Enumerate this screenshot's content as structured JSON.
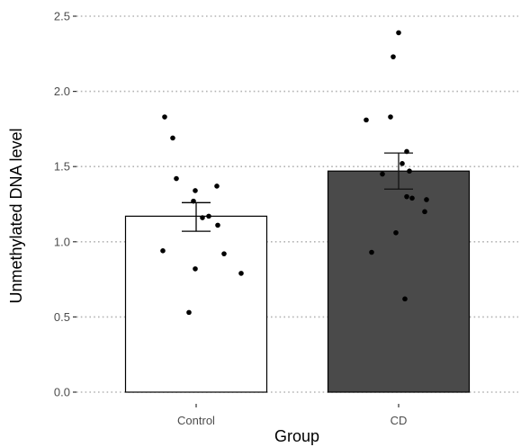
{
  "chart_data": {
    "type": "bar",
    "title": "",
    "xlabel": "Group",
    "ylabel": "Unmethylated DNA level",
    "ylim": [
      0,
      2.55
    ],
    "y_ticks": [
      0.0,
      0.5,
      1.0,
      1.5,
      2.0,
      2.5
    ],
    "y_tick_labels": [
      "0.0",
      "0.5",
      "1.0",
      "1.5",
      "2.0",
      "2.5"
    ],
    "grid": "horizontal dotted",
    "categories": [
      "Control",
      "CD"
    ],
    "values": [
      1.17,
      1.47
    ],
    "error": [
      {
        "low": 1.07,
        "high": 1.26
      },
      {
        "low": 1.35,
        "high": 1.59
      }
    ],
    "bar_colors": [
      "#ffffff",
      "#4a4a4a"
    ],
    "points": [
      [
        1.83,
        1.69,
        1.42,
        1.37,
        1.34,
        1.27,
        1.17,
        1.16,
        1.11,
        0.94,
        0.92,
        0.82,
        0.79,
        0.53
      ],
      [
        2.39,
        2.23,
        1.83,
        1.81,
        1.6,
        1.52,
        1.47,
        1.45,
        1.3,
        1.29,
        1.28,
        1.2,
        1.06,
        0.93,
        0.62
      ]
    ]
  }
}
